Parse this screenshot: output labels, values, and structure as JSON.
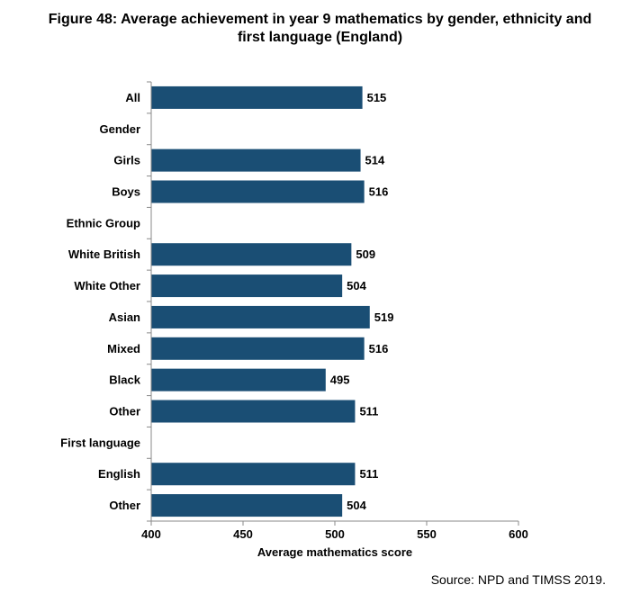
{
  "title_line1": "Figure 48: Average achievement in year 9 mathematics by gender, ethnicity and",
  "title_line2": "first language (England)",
  "source": "Source: NPD and TIMSS 2019.",
  "colors": {
    "bar": "#1a4e74",
    "axis": "#8a8a8a"
  },
  "chart_data": {
    "type": "bar",
    "orientation": "horizontal",
    "title": "Figure 48: Average achievement in year 9 mathematics by gender, ethnicity and first language (England)",
    "xlabel": "Average mathematics score",
    "ylabel": "",
    "xlim": [
      400,
      600
    ],
    "xticks": [
      400,
      450,
      500,
      550,
      600
    ],
    "grid": false,
    "categories": [
      "All",
      "Gender",
      "Girls",
      "Boys",
      "Ethnic Group",
      "White British",
      "White Other",
      "Asian",
      "Mixed",
      "Black",
      "Other",
      "First language",
      "English",
      "Other"
    ],
    "values": [
      515,
      null,
      514,
      516,
      null,
      509,
      504,
      519,
      516,
      495,
      511,
      null,
      511,
      504
    ],
    "value_labels": [
      "515",
      "",
      "514",
      "516",
      "",
      "509",
      "504",
      "519",
      "516",
      "495",
      "511",
      "",
      "511",
      "504"
    ]
  }
}
